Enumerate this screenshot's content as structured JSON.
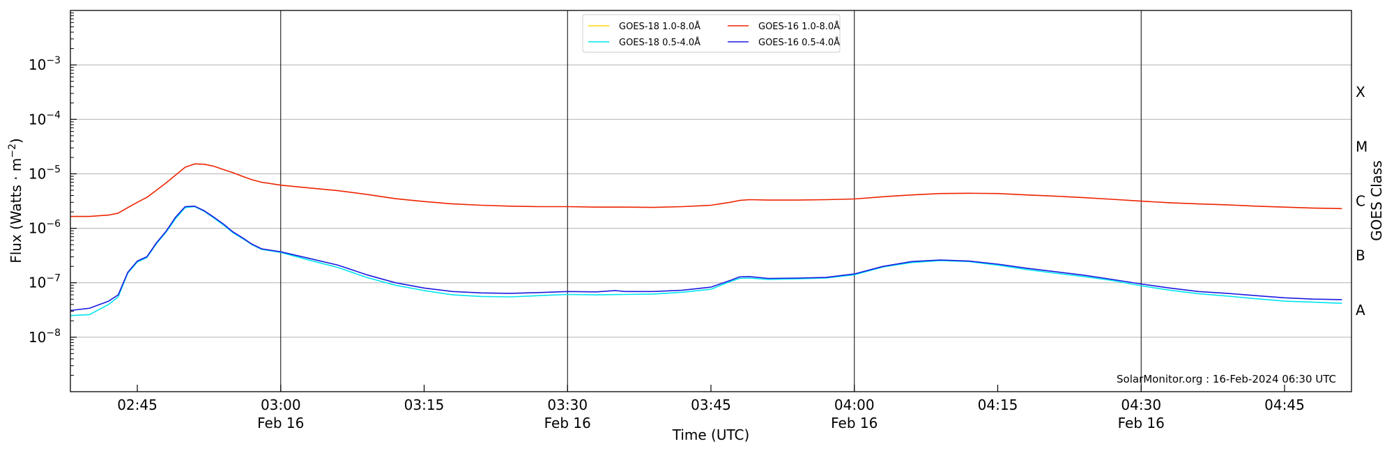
{
  "chart_data": {
    "type": "line",
    "title": "",
    "xlabel": "Time (UTC)",
    "ylabel_parts": [
      "Flux (Watts · m",
      "−2",
      ")"
    ],
    "right_label": "GOES Class",
    "y_scale": "log",
    "ylim": [
      1e-09,
      0.01
    ],
    "xlim": [
      "02:38",
      "04:52"
    ],
    "y_ticks": [
      {
        "value": 1e-08,
        "label_base": "10",
        "label_exp": "−8"
      },
      {
        "value": 1e-07,
        "label_base": "10",
        "label_exp": "−7"
      },
      {
        "value": 1e-06,
        "label_base": "10",
        "label_exp": "−6"
      },
      {
        "value": 1e-05,
        "label_base": "10",
        "label_exp": "−5"
      },
      {
        "value": 0.0001,
        "label_base": "10",
        "label_exp": "−4"
      },
      {
        "value": 0.001,
        "label_base": "10",
        "label_exp": "−3"
      }
    ],
    "x_ticks": [
      {
        "time": "02:45",
        "label": "02:45",
        "date": ""
      },
      {
        "time": "03:00",
        "label": "03:00",
        "date": "Feb 16"
      },
      {
        "time": "03:15",
        "label": "03:15",
        "date": ""
      },
      {
        "time": "03:30",
        "label": "03:30",
        "date": "Feb 16"
      },
      {
        "time": "03:45",
        "label": "03:45",
        "date": ""
      },
      {
        "time": "04:00",
        "label": "04:00",
        "date": "Feb 16"
      },
      {
        "time": "04:15",
        "label": "04:15",
        "date": ""
      },
      {
        "time": "04:30",
        "label": "04:30",
        "date": "Feb 16"
      },
      {
        "time": "04:45",
        "label": "04:45",
        "date": ""
      }
    ],
    "vertical_lines": [
      "03:00",
      "03:30",
      "04:00",
      "04:30"
    ],
    "grid": "horizontal",
    "legend_position": "top-center",
    "goes_classes": [
      {
        "label": "X",
        "value": 0.000316
      },
      {
        "label": "M",
        "value": 3.16e-05
      },
      {
        "label": "C",
        "value": 3.16e-06
      },
      {
        "label": "B",
        "value": 3.16e-07
      },
      {
        "label": "A",
        "value": 3.16e-08
      }
    ],
    "credit": "SolarMonitor.org : 16-Feb-2024 06:30 UTC",
    "series": [
      {
        "name": "GOES-18 1.0-8.0Å",
        "color": "#ffd700",
        "points": []
      },
      {
        "name": "GOES-16 1.0-8.0Å",
        "color": "#ee2200",
        "points": [
          [
            "02:38",
            1.65e-06
          ],
          [
            "02:40",
            1.65e-06
          ],
          [
            "02:42",
            1.75e-06
          ],
          [
            "02:43",
            1.9e-06
          ],
          [
            "02:44",
            2.4e-06
          ],
          [
            "02:45",
            3e-06
          ],
          [
            "02:46",
            3.7e-06
          ],
          [
            "02:47",
            5e-06
          ],
          [
            "02:48",
            6.8e-06
          ],
          [
            "02:49",
            9.5e-06
          ],
          [
            "02:50",
            1.32e-05
          ],
          [
            "02:51",
            1.52e-05
          ],
          [
            "02:52",
            1.5e-05
          ],
          [
            "02:53",
            1.38e-05
          ],
          [
            "02:54",
            1.2e-05
          ],
          [
            "02:55",
            1.05e-05
          ],
          [
            "02:56",
            9e-06
          ],
          [
            "02:57",
            7.8e-06
          ],
          [
            "02:58",
            7e-06
          ],
          [
            "03:00",
            6.2e-06
          ],
          [
            "03:03",
            5.5e-06
          ],
          [
            "03:06",
            4.9e-06
          ],
          [
            "03:09",
            4.2e-06
          ],
          [
            "03:12",
            3.5e-06
          ],
          [
            "03:15",
            3.1e-06
          ],
          [
            "03:18",
            2.8e-06
          ],
          [
            "03:21",
            2.65e-06
          ],
          [
            "03:24",
            2.55e-06
          ],
          [
            "03:27",
            2.5e-06
          ],
          [
            "03:30",
            2.5e-06
          ],
          [
            "03:33",
            2.45e-06
          ],
          [
            "03:36",
            2.45e-06
          ],
          [
            "03:39",
            2.42e-06
          ],
          [
            "03:42",
            2.5e-06
          ],
          [
            "03:45",
            2.65e-06
          ],
          [
            "03:47",
            3e-06
          ],
          [
            "03:48",
            3.25e-06
          ],
          [
            "03:49",
            3.35e-06
          ],
          [
            "03:51",
            3.3e-06
          ],
          [
            "03:54",
            3.3e-06
          ],
          [
            "03:57",
            3.35e-06
          ],
          [
            "04:00",
            3.45e-06
          ],
          [
            "04:03",
            3.8e-06
          ],
          [
            "04:06",
            4.1e-06
          ],
          [
            "04:09",
            4.35e-06
          ],
          [
            "04:12",
            4.4e-06
          ],
          [
            "04:15",
            4.35e-06
          ],
          [
            "04:18",
            4.1e-06
          ],
          [
            "04:21",
            3.9e-06
          ],
          [
            "04:24",
            3.65e-06
          ],
          [
            "04:27",
            3.4e-06
          ],
          [
            "04:30",
            3.15e-06
          ],
          [
            "04:33",
            2.95e-06
          ],
          [
            "04:36",
            2.8e-06
          ],
          [
            "04:39",
            2.7e-06
          ],
          [
            "04:42",
            2.55e-06
          ],
          [
            "04:45",
            2.45e-06
          ],
          [
            "04:48",
            2.35e-06
          ],
          [
            "04:51",
            2.3e-06
          ]
        ]
      },
      {
        "name": "GOES-18 0.5-4.0Å",
        "color": "#00e5ee",
        "points": [
          [
            "02:38",
            2.5e-08
          ],
          [
            "02:40",
            2.6e-08
          ],
          [
            "02:42",
            4e-08
          ],
          [
            "02:43",
            5.5e-08
          ],
          [
            "02:44",
            1.5e-07
          ],
          [
            "02:45",
            2.4e-07
          ],
          [
            "02:46",
            2.9e-07
          ],
          [
            "02:47",
            5.2e-07
          ],
          [
            "02:48",
            8.5e-07
          ],
          [
            "02:49",
            1.5e-06
          ],
          [
            "02:50",
            2.4e-06
          ],
          [
            "02:51",
            2.5e-06
          ],
          [
            "02:52",
            2.05e-06
          ],
          [
            "02:53",
            1.55e-06
          ],
          [
            "02:54",
            1.15e-06
          ],
          [
            "02:55",
            8.3e-07
          ],
          [
            "02:56",
            6.5e-07
          ],
          [
            "02:57",
            5e-07
          ],
          [
            "02:58",
            4.1e-07
          ],
          [
            "03:00",
            3.6e-07
          ],
          [
            "03:03",
            2.6e-07
          ],
          [
            "03:06",
            1.9e-07
          ],
          [
            "03:09",
            1.25e-07
          ],
          [
            "03:12",
            9e-08
          ],
          [
            "03:15",
            7.2e-08
          ],
          [
            "03:18",
            6e-08
          ],
          [
            "03:21",
            5.6e-08
          ],
          [
            "03:24",
            5.5e-08
          ],
          [
            "03:27",
            5.8e-08
          ],
          [
            "03:30",
            6.1e-08
          ],
          [
            "03:33",
            6e-08
          ],
          [
            "03:36",
            6.1e-08
          ],
          [
            "03:39",
            6.2e-08
          ],
          [
            "03:42",
            6.7e-08
          ],
          [
            "03:45",
            7.6e-08
          ],
          [
            "03:47",
            1.05e-07
          ],
          [
            "03:48",
            1.2e-07
          ],
          [
            "03:49",
            1.22e-07
          ],
          [
            "03:51",
            1.15e-07
          ],
          [
            "03:54",
            1.18e-07
          ],
          [
            "03:57",
            1.22e-07
          ],
          [
            "04:00",
            1.4e-07
          ],
          [
            "04:03",
            1.95e-07
          ],
          [
            "04:06",
            2.35e-07
          ],
          [
            "04:09",
            2.55e-07
          ],
          [
            "04:12",
            2.45e-07
          ],
          [
            "04:15",
            2.1e-07
          ],
          [
            "04:18",
            1.75e-07
          ],
          [
            "04:21",
            1.5e-07
          ],
          [
            "04:24",
            1.3e-07
          ],
          [
            "04:27",
            1.1e-07
          ],
          [
            "04:30",
            8.8e-08
          ],
          [
            "04:33",
            7.3e-08
          ],
          [
            "04:36",
            6.3e-08
          ],
          [
            "04:39",
            5.7e-08
          ],
          [
            "04:42",
            5.1e-08
          ],
          [
            "04:45",
            4.6e-08
          ],
          [
            "04:48",
            4.4e-08
          ],
          [
            "04:51",
            4.2e-08
          ]
        ]
      },
      {
        "name": "GOES-16 0.5-4.0Å",
        "color": "#1a1adf",
        "points": [
          [
            "02:38",
            3.1e-08
          ],
          [
            "02:40",
            3.4e-08
          ],
          [
            "02:42",
            4.6e-08
          ],
          [
            "02:43",
            6e-08
          ],
          [
            "02:44",
            1.55e-07
          ],
          [
            "02:45",
            2.5e-07
          ],
          [
            "02:46",
            3e-07
          ],
          [
            "02:47",
            5.4e-07
          ],
          [
            "02:48",
            8.8e-07
          ],
          [
            "02:49",
            1.6e-06
          ],
          [
            "02:50",
            2.5e-06
          ],
          [
            "02:51",
            2.55e-06
          ],
          [
            "02:52",
            2.1e-06
          ],
          [
            "02:53",
            1.6e-06
          ],
          [
            "02:54",
            1.2e-06
          ],
          [
            "02:55",
            8.6e-07
          ],
          [
            "02:56",
            6.7e-07
          ],
          [
            "02:57",
            5.1e-07
          ],
          [
            "02:58",
            4.2e-07
          ],
          [
            "03:00",
            3.7e-07
          ],
          [
            "03:03",
            2.8e-07
          ],
          [
            "03:06",
            2.1e-07
          ],
          [
            "03:09",
            1.4e-07
          ],
          [
            "03:12",
            1e-07
          ],
          [
            "03:15",
            8e-08
          ],
          [
            "03:18",
            6.9e-08
          ],
          [
            "03:21",
            6.5e-08
          ],
          [
            "03:24",
            6.4e-08
          ],
          [
            "03:27",
            6.6e-08
          ],
          [
            "03:30",
            6.9e-08
          ],
          [
            "03:33",
            6.8e-08
          ],
          [
            "03:35",
            7.2e-08
          ],
          [
            "03:36",
            6.9e-08
          ],
          [
            "03:39",
            6.9e-08
          ],
          [
            "03:42",
            7.3e-08
          ],
          [
            "03:45",
            8.3e-08
          ],
          [
            "03:47",
            1.1e-07
          ],
          [
            "03:48",
            1.28e-07
          ],
          [
            "03:49",
            1.3e-07
          ],
          [
            "03:51",
            1.2e-07
          ],
          [
            "03:54",
            1.22e-07
          ],
          [
            "03:57",
            1.25e-07
          ],
          [
            "04:00",
            1.45e-07
          ],
          [
            "04:03",
            2e-07
          ],
          [
            "04:06",
            2.45e-07
          ],
          [
            "04:09",
            2.62e-07
          ],
          [
            "04:12",
            2.5e-07
          ],
          [
            "04:15",
            2.2e-07
          ],
          [
            "04:18",
            1.85e-07
          ],
          [
            "04:21",
            1.6e-07
          ],
          [
            "04:24",
            1.38e-07
          ],
          [
            "04:27",
            1.15e-07
          ],
          [
            "04:30",
            9.5e-08
          ],
          [
            "04:33",
            8e-08
          ],
          [
            "04:36",
            6.9e-08
          ],
          [
            "04:39",
            6.4e-08
          ],
          [
            "04:42",
            5.8e-08
          ],
          [
            "04:45",
            5.3e-08
          ],
          [
            "04:48",
            5e-08
          ],
          [
            "04:51",
            4.9e-08
          ]
        ]
      }
    ],
    "legend_order": [
      0,
      2,
      1,
      3
    ]
  }
}
